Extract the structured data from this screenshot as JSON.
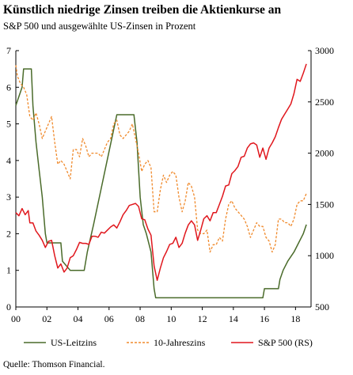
{
  "title": "Künstlich niedrige Zinsen treiben die Aktienkurse an",
  "subtitle": "S&P 500 und ausgewählte US-Zinsen in Prozent",
  "source": "Quelle: Thomson Financial.",
  "colors": {
    "leitzins": "#4a6b2a",
    "jahreszins": "#f08a2c",
    "sp500": "#e0171d",
    "axis": "#000000"
  },
  "chart_data": {
    "type": "line",
    "x_ticks": [
      "00",
      "02",
      "04",
      "06",
      "08",
      "10",
      "12",
      "14",
      "16",
      "18"
    ],
    "xlim": [
      2000,
      2019
    ],
    "y_left": {
      "ticks": [
        "0",
        "1",
        "2",
        "3",
        "4",
        "5",
        "6",
        "7"
      ],
      "ylim": [
        0,
        7
      ]
    },
    "y_right": {
      "ticks": [
        "500",
        "1000",
        "1500",
        "2000",
        "2500",
        "3000"
      ],
      "ylim": [
        500,
        3000
      ]
    },
    "grid": false,
    "legend_position": "bottom",
    "series": [
      {
        "name": "US-Leitzins",
        "axis": "left",
        "style": "solid",
        "x": [
          2000.0,
          2000.4,
          2000.5,
          2001.0,
          2001.1,
          2001.3,
          2001.5,
          2001.7,
          2001.9,
          2002.0,
          2002.9,
          2003.0,
          2003.5,
          2004.4,
          2004.6,
          2005.0,
          2005.5,
          2006.0,
          2006.5,
          2007.6,
          2007.8,
          2008.0,
          2008.2,
          2008.4,
          2008.7,
          2008.9,
          2009.0,
          2015.9,
          2016.0,
          2016.9,
          2017.0,
          2017.2,
          2017.5,
          2017.9,
          2018.2,
          2018.5,
          2018.7
        ],
        "y": [
          5.5,
          6.0,
          6.5,
          6.5,
          5.5,
          4.5,
          3.75,
          3.0,
          2.0,
          1.75,
          1.75,
          1.25,
          1.0,
          1.0,
          1.5,
          2.25,
          3.25,
          4.25,
          5.25,
          5.25,
          4.5,
          3.0,
          2.25,
          2.0,
          1.5,
          0.5,
          0.25,
          0.25,
          0.5,
          0.5,
          0.75,
          1.0,
          1.25,
          1.5,
          1.75,
          2.0,
          2.25
        ]
      },
      {
        "name": "10-Jahreszins",
        "axis": "left",
        "style": "dashed",
        "x": [
          2000.0,
          2000.1,
          2000.3,
          2000.5,
          2000.7,
          2000.9,
          2001.1,
          2001.3,
          2001.5,
          2001.7,
          2001.9,
          2002.1,
          2002.3,
          2002.5,
          2002.7,
          2002.9,
          2003.1,
          2003.3,
          2003.5,
          2003.7,
          2003.9,
          2004.1,
          2004.3,
          2004.5,
          2004.7,
          2004.9,
          2005.1,
          2005.3,
          2005.5,
          2005.7,
          2005.9,
          2006.1,
          2006.3,
          2006.5,
          2006.7,
          2006.9,
          2007.1,
          2007.3,
          2007.5,
          2007.7,
          2007.9,
          2008.1,
          2008.3,
          2008.5,
          2008.7,
          2008.9,
          2009.1,
          2009.3,
          2009.5,
          2009.7,
          2009.9,
          2010.1,
          2010.3,
          2010.5,
          2010.7,
          2010.9,
          2011.1,
          2011.3,
          2011.5,
          2011.7,
          2011.9,
          2012.1,
          2012.3,
          2012.5,
          2012.7,
          2012.9,
          2013.1,
          2013.3,
          2013.5,
          2013.7,
          2013.9,
          2014.1,
          2014.3,
          2014.5,
          2014.7,
          2014.9,
          2015.1,
          2015.3,
          2015.5,
          2015.7,
          2015.9,
          2016.1,
          2016.3,
          2016.5,
          2016.7,
          2016.9,
          2017.1,
          2017.3,
          2017.5,
          2017.7,
          2017.9,
          2018.1,
          2018.3,
          2018.5,
          2018.7
        ],
        "y": [
          6.6,
          6.3,
          6.1,
          6.0,
          5.8,
          5.2,
          5.1,
          5.3,
          5.0,
          4.6,
          4.8,
          5.0,
          5.2,
          4.5,
          3.9,
          4.0,
          3.9,
          3.7,
          3.5,
          4.3,
          4.3,
          4.1,
          4.6,
          4.4,
          4.1,
          4.2,
          4.2,
          4.2,
          4.1,
          4.3,
          4.5,
          4.6,
          5.0,
          5.1,
          4.7,
          4.6,
          4.7,
          4.8,
          5.0,
          4.6,
          4.2,
          3.7,
          3.9,
          4.0,
          3.8,
          2.6,
          2.6,
          3.2,
          3.6,
          3.4,
          3.6,
          3.7,
          3.6,
          3.0,
          2.6,
          2.9,
          3.4,
          3.3,
          3.0,
          2.1,
          2.0,
          2.0,
          2.1,
          1.5,
          1.7,
          1.7,
          1.9,
          1.8,
          2.4,
          2.8,
          2.9,
          2.7,
          2.6,
          2.5,
          2.4,
          2.2,
          1.9,
          2.1,
          2.3,
          2.2,
          2.2,
          1.9,
          1.8,
          1.5,
          1.7,
          2.4,
          2.4,
          2.3,
          2.3,
          2.2,
          2.4,
          2.8,
          2.9,
          2.9,
          3.1
        ]
      },
      {
        "name": "S&P 500 (RS)",
        "axis": "right",
        "style": "solid",
        "x": [
          2000.0,
          2000.2,
          2000.4,
          2000.6,
          2000.8,
          2000.9,
          2001.1,
          2001.3,
          2001.5,
          2001.7,
          2001.9,
          2002.1,
          2002.3,
          2002.5,
          2002.7,
          2002.9,
          2003.1,
          2003.3,
          2003.5,
          2003.7,
          2003.9,
          2004.1,
          2004.3,
          2004.5,
          2004.7,
          2004.9,
          2005.1,
          2005.3,
          2005.5,
          2005.7,
          2005.9,
          2006.1,
          2006.3,
          2006.5,
          2006.7,
          2006.9,
          2007.1,
          2007.3,
          2007.5,
          2007.7,
          2007.9,
          2008.1,
          2008.3,
          2008.5,
          2008.7,
          2008.9,
          2009.1,
          2009.3,
          2009.5,
          2009.7,
          2009.9,
          2010.1,
          2010.3,
          2010.5,
          2010.7,
          2010.9,
          2011.1,
          2011.3,
          2011.5,
          2011.7,
          2011.9,
          2012.1,
          2012.3,
          2012.5,
          2012.7,
          2012.9,
          2013.1,
          2013.3,
          2013.5,
          2013.7,
          2013.9,
          2014.1,
          2014.3,
          2014.5,
          2014.7,
          2014.9,
          2015.1,
          2015.3,
          2015.5,
          2015.7,
          2015.9,
          2016.1,
          2016.3,
          2016.5,
          2016.7,
          2016.9,
          2017.1,
          2017.3,
          2017.5,
          2017.7,
          2017.9,
          2018.1,
          2018.3,
          2018.5,
          2018.7
        ],
        "y": [
          1420,
          1390,
          1460,
          1400,
          1440,
          1320,
          1320,
          1240,
          1200,
          1150,
          1080,
          1140,
          1150,
          1000,
          880,
          920,
          840,
          880,
          980,
          1000,
          1060,
          1130,
          1120,
          1120,
          1110,
          1190,
          1190,
          1180,
          1230,
          1220,
          1250,
          1280,
          1300,
          1270,
          1330,
          1400,
          1440,
          1490,
          1500,
          1510,
          1480,
          1360,
          1350,
          1260,
          1200,
          900,
          760,
          880,
          980,
          1040,
          1110,
          1120,
          1180,
          1080,
          1120,
          1220,
          1300,
          1340,
          1300,
          1150,
          1250,
          1360,
          1390,
          1340,
          1420,
          1420,
          1500,
          1580,
          1680,
          1690,
          1800,
          1830,
          1870,
          1960,
          1970,
          2050,
          2090,
          2100,
          2080,
          1960,
          2050,
          1940,
          2050,
          2100,
          2160,
          2250,
          2330,
          2380,
          2430,
          2480,
          2580,
          2720,
          2700,
          2780,
          2870
        ]
      }
    ]
  }
}
